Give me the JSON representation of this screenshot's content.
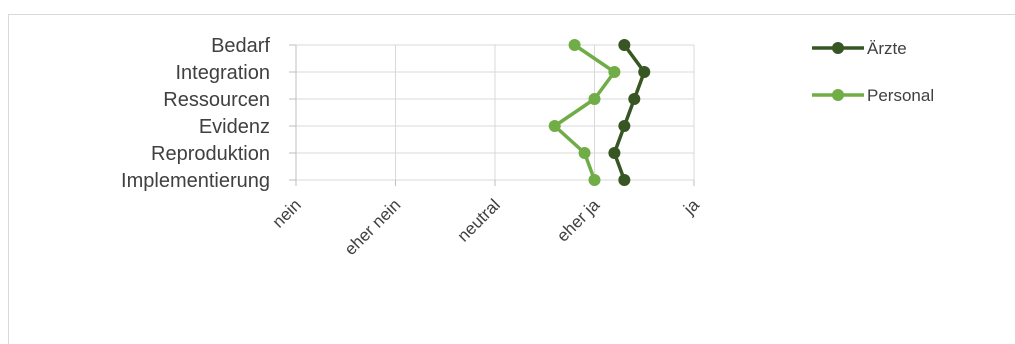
{
  "chart_data": {
    "type": "line",
    "orientation": "horizontal",
    "categories": [
      "Bedarf",
      "Integration",
      "Ressourcen",
      "Evidenz",
      "Reproduktion",
      "Implementierung"
    ],
    "x_ticks": [
      "nein",
      "eher nein",
      "neutral",
      "eher ja",
      "ja"
    ],
    "x_values": [
      1,
      2,
      3,
      4,
      5
    ],
    "xlim": [
      1,
      5
    ],
    "grid": true,
    "legend_position": "right",
    "series": [
      {
        "name": "Ärzte",
        "color": "#375623",
        "values": [
          4.3,
          4.5,
          4.4,
          4.3,
          4.2,
          4.3
        ]
      },
      {
        "name": "Personal",
        "color": "#70ad47",
        "values": [
          3.8,
          4.2,
          4.0,
          3.6,
          3.9,
          4.0
        ]
      }
    ]
  }
}
